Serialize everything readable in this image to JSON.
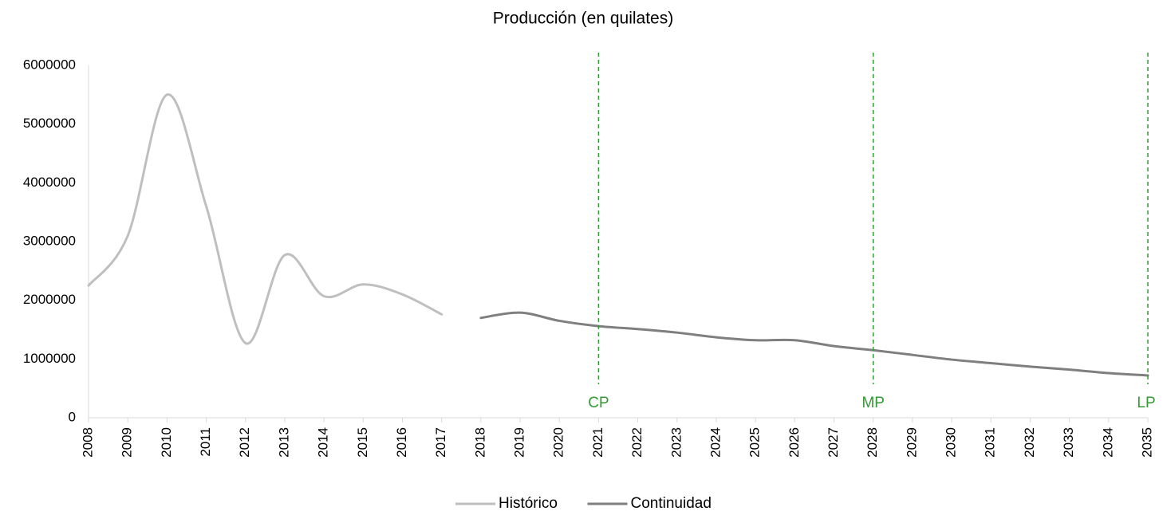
{
  "chart_data": {
    "type": "line",
    "title": "Producción (en quilates)",
    "categories": [
      "2008",
      "2009",
      "2010",
      "2011",
      "2012",
      "2013",
      "2014",
      "2015",
      "2016",
      "2017",
      "2018",
      "2019",
      "2020",
      "2021",
      "2022",
      "2023",
      "2024",
      "2025",
      "2026",
      "2027",
      "2028",
      "2029",
      "2030",
      "2031",
      "2032",
      "2033",
      "2034",
      "2035"
    ],
    "series": [
      {
        "name": "Histórico",
        "color": "#bfbfbf",
        "values": [
          2250000,
          3100000,
          5500000,
          3600000,
          1270000,
          2770000,
          2070000,
          2270000,
          2100000,
          1760000,
          null,
          null,
          null,
          null,
          null,
          null,
          null,
          null,
          null,
          null,
          null,
          null,
          null,
          null,
          null,
          null,
          null,
          null
        ]
      },
      {
        "name": "Continuidad",
        "color": "#7f7f7f",
        "values": [
          null,
          null,
          null,
          null,
          null,
          null,
          null,
          null,
          null,
          null,
          1700000,
          1790000,
          1650000,
          1560000,
          1510000,
          1450000,
          1370000,
          1320000,
          1320000,
          1220000,
          1150000,
          1070000,
          990000,
          930000,
          870000,
          820000,
          760000,
          720000
        ]
      }
    ],
    "ylim": [
      0,
      6000000
    ],
    "yticks": [
      0,
      1000000,
      2000000,
      3000000,
      4000000,
      5000000,
      6000000
    ],
    "smooth": true,
    "legend": "bottom",
    "markers": [
      {
        "label": "CP",
        "at": "2021"
      },
      {
        "label": "MP",
        "at": "2028"
      },
      {
        "label": "LP",
        "at": "2035"
      }
    ],
    "marker_color": "#339933"
  }
}
